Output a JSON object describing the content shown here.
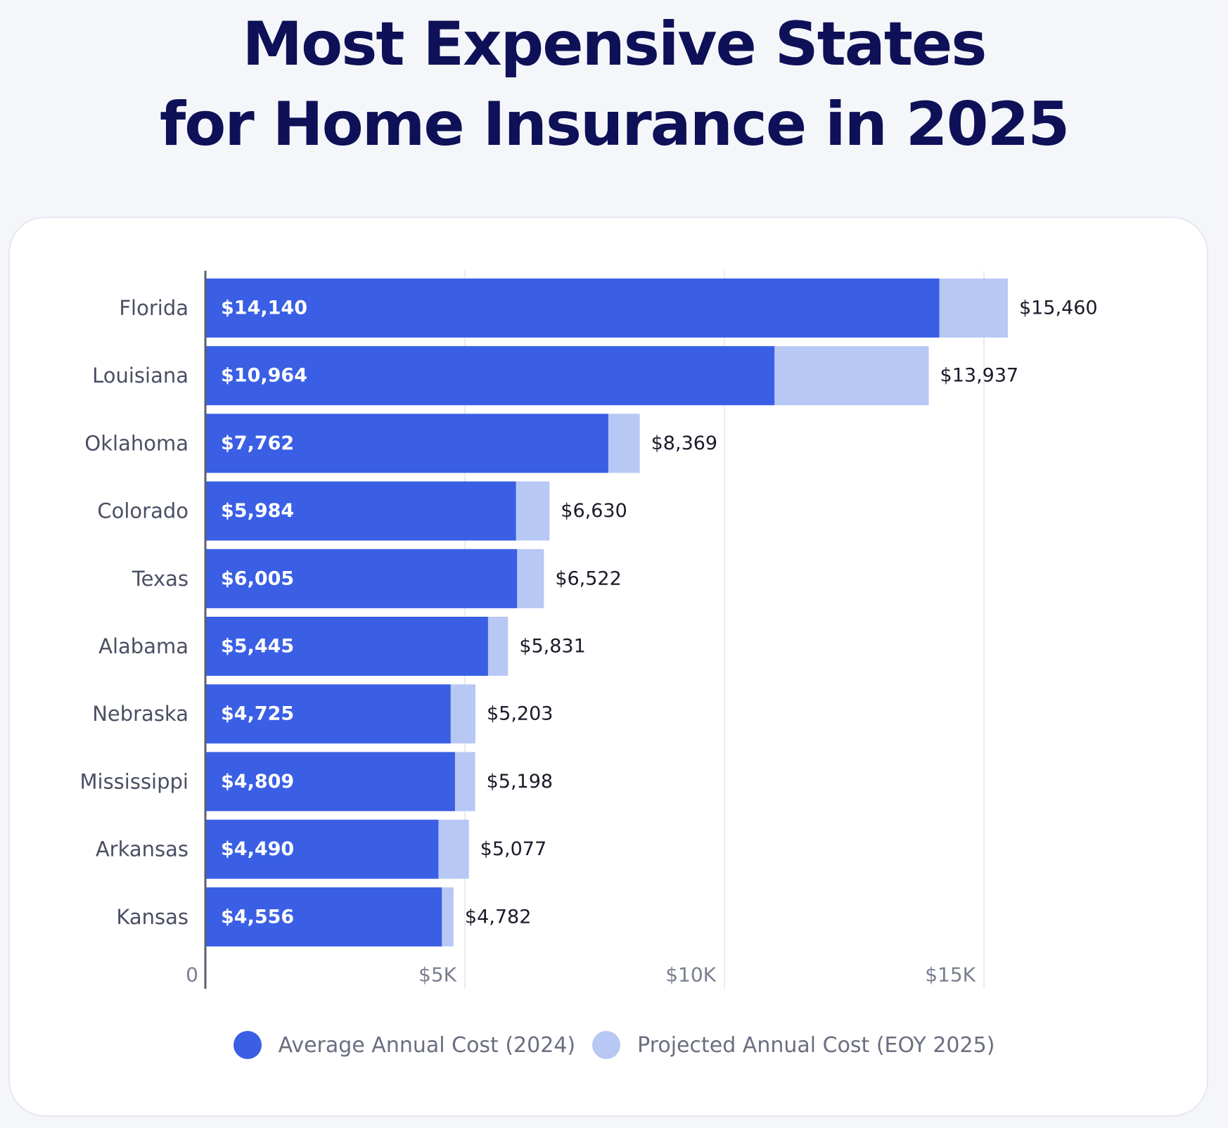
{
  "title_line1": "Most Expensive States",
  "title_line2": "for Home Insurance in 2025",
  "colors": {
    "average": "#3a5fe5",
    "projected": "#b8c8f4",
    "axis": "#5a5e6e",
    "grid": "#e9ebf1"
  },
  "chart_data": {
    "type": "bar",
    "orientation": "horizontal",
    "stacked": false,
    "categories": [
      "Florida",
      "Louisiana",
      "Oklahoma",
      "Colorado",
      "Texas",
      "Alabama",
      "Nebraska",
      "Mississippi",
      "Arkansas",
      "Kansas"
    ],
    "series": [
      {
        "name": "Average Annual Cost (2024)",
        "values": [
          14140,
          10964,
          7762,
          5984,
          6005,
          5445,
          4725,
          4809,
          4490,
          4556
        ],
        "labels": [
          "$14,140",
          "$10,964",
          "$7,762",
          "$5,984",
          "$6,005",
          "$5,445",
          "$4,725",
          "$4,809",
          "$4,490",
          "$4,556"
        ]
      },
      {
        "name": "Projected Annual Cost (EOY 2025)",
        "values": [
          15460,
          13937,
          8369,
          6630,
          6522,
          5831,
          5203,
          5198,
          5077,
          4782
        ],
        "labels": [
          "$15,460",
          "$13,937",
          "$8,369",
          "$6,630",
          "$6,522",
          "$5,831",
          "$5,203",
          "$5,198",
          "$5,077",
          "$4,782"
        ]
      }
    ],
    "xlim": [
      0,
      18000
    ],
    "ticks": [
      0,
      5000,
      10000,
      15000
    ],
    "tick_labels": [
      "0",
      "$5K",
      "$10K",
      "$15K"
    ],
    "grid": true,
    "legend_position": "bottom"
  }
}
